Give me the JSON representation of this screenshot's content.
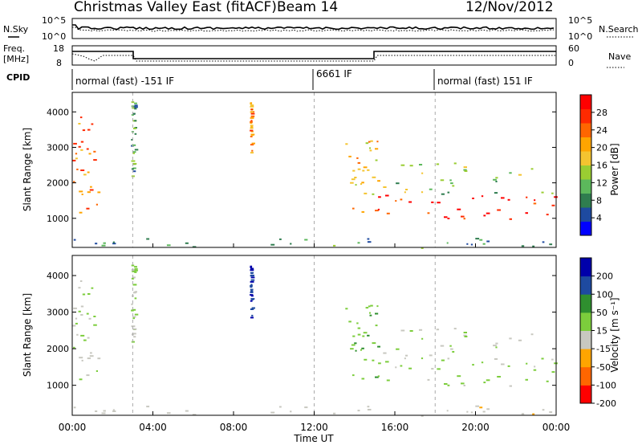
{
  "header": {
    "station": "Christmas Valley East (fitACF)",
    "beam": "Beam 14",
    "date": "12/Nov/2012"
  },
  "noise_panel": {
    "left_label": "N.Sky",
    "right_label": "N.Search",
    "left_ticks": [
      "10^5",
      "10^0"
    ],
    "right_ticks": [
      "10^5",
      "10^0"
    ]
  },
  "freq_panel": {
    "left_label": "Freq.",
    "left_unit": "[MHz]",
    "right_label": "Nave",
    "left_ticks": [
      "18",
      "8"
    ],
    "right_ticks": [
      "60",
      "0"
    ]
  },
  "cpid": {
    "label": "CPID",
    "segments": [
      {
        "text": "normal (fast) -151 IF",
        "start_hour": 0
      },
      {
        "text": "6661 IF",
        "start_hour": 12
      },
      {
        "text": "normal (fast) 151 IF",
        "start_hour": 18
      }
    ]
  },
  "x_axis": {
    "label": "Time UT",
    "ticks": [
      "00:00",
      "04:00",
      "08:00",
      "12:00",
      "16:00",
      "20:00",
      "00:00"
    ]
  },
  "power_panel": {
    "ylabel": "Slant Range [km]",
    "yticks": [
      "4000",
      "3000",
      "2000",
      "1000"
    ],
    "colorbar_label": "Power [dB]",
    "colorbar_ticks": [
      "28",
      "24",
      "20",
      "16",
      "12",
      "8",
      "4"
    ]
  },
  "velocity_panel": {
    "ylabel": "Slant Range [km]",
    "yticks": [
      "4000",
      "3000",
      "2000",
      "1000"
    ],
    "colorbar_label": "Velocity [m s⁻¹]",
    "colorbar_ticks": [
      "200",
      "100",
      "50",
      "15",
      "-15",
      "-50",
      "-100",
      "-200"
    ]
  },
  "colors": {
    "power_scale": [
      "#0000ff",
      "#1e4aa0",
      "#2f7d4f",
      "#5cb85c",
      "#9acd32",
      "#f4c430",
      "#ffa500",
      "#ff6600",
      "#ff2a00",
      "#ff0000"
    ],
    "velocity_scale": [
      "#0000aa",
      "#1e4aa0",
      "#2f8f2f",
      "#7ccd3c",
      "#c8c8c0",
      "#ffa500",
      "#ff6600",
      "#ff0000"
    ]
  },
  "chart_data": {
    "type": "heatmap",
    "x_range_hours": [
      0,
      24
    ],
    "y_range_km": [
      180,
      4550
    ],
    "power_db_range": [
      0,
      30
    ],
    "velocity_range": [
      -200,
      200
    ],
    "echo_regions": [
      {
        "t0": 0.0,
        "t1": 1.3,
        "r0": 1100,
        "r1": 3900,
        "power_db": 22,
        "velocity": -5
      },
      {
        "t0": 2.9,
        "t1": 3.1,
        "r0": 2200,
        "r1": 4350,
        "power_db": 10,
        "velocity": 0
      },
      {
        "t0": 8.8,
        "t1": 8.9,
        "r0": 2800,
        "r1": 4400,
        "power_db": 20,
        "velocity": 150
      },
      {
        "t0": 0.0,
        "t1": 24.0,
        "r0": 180,
        "r1": 480,
        "power_db": 9,
        "velocity": -40
      },
      {
        "t0": 13.5,
        "t1": 15.2,
        "r0": 1200,
        "r1": 3200,
        "power_db": 18,
        "velocity": 40
      },
      {
        "t0": 15.0,
        "t1": 24.0,
        "r0": 1000,
        "r1": 1700,
        "power_db": 27,
        "velocity": 0
      },
      {
        "t0": 15.0,
        "t1": 24.0,
        "r0": 1700,
        "r1": 2600,
        "power_db": 12,
        "velocity": -5
      }
    ]
  }
}
